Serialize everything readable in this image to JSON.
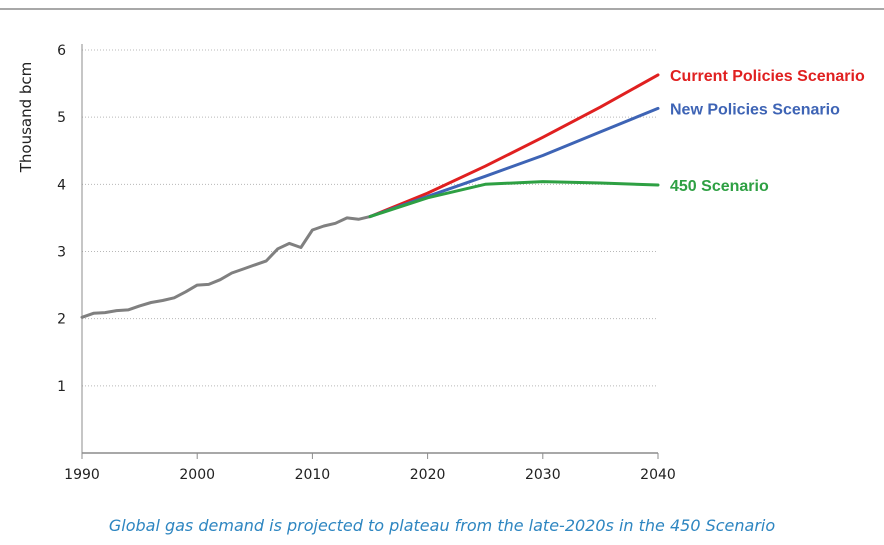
{
  "caption": "Global gas demand is projected to plateau from the late-2020s in the 450 Scenario",
  "chart_data": {
    "type": "line",
    "title": "",
    "xlabel": "",
    "ylabel": "Thousand bcm",
    "xlim": [
      1990,
      2040
    ],
    "ylim": [
      0,
      6
    ],
    "xticks": [
      1990,
      2000,
      2010,
      2020,
      2030,
      2040
    ],
    "yticks": [
      1,
      2,
      3,
      4,
      5,
      6
    ],
    "grid": "horizontal dotted",
    "series": [
      {
        "name": "",
        "color": "#808080",
        "x": [
          1990,
          1991,
          1992,
          1993,
          1994,
          1995,
          1996,
          1997,
          1998,
          1999,
          2000,
          2001,
          2002,
          2003,
          2004,
          2005,
          2006,
          2007,
          2008,
          2009,
          2010,
          2011,
          2012,
          2013,
          2014,
          2015
        ],
        "y": [
          2.02,
          2.08,
          2.09,
          2.12,
          2.13,
          2.19,
          2.24,
          2.27,
          2.31,
          2.4,
          2.5,
          2.51,
          2.58,
          2.68,
          2.74,
          2.8,
          2.86,
          3.04,
          3.12,
          3.06,
          3.32,
          3.38,
          3.42,
          3.5,
          3.48,
          3.52
        ]
      },
      {
        "name": "Current Policies Scenario",
        "color": "#e02020",
        "x": [
          2015,
          2020,
          2025,
          2030,
          2035,
          2040
        ],
        "y": [
          3.52,
          3.87,
          4.27,
          4.7,
          5.15,
          5.63
        ]
      },
      {
        "name": "New Policies Scenario",
        "color": "#3e64b5",
        "x": [
          2015,
          2020,
          2025,
          2030,
          2035,
          2040
        ],
        "y": [
          3.52,
          3.82,
          4.12,
          4.43,
          4.78,
          5.13
        ]
      },
      {
        "name": "450 Scenario",
        "color": "#2ea043",
        "x": [
          2015,
          2020,
          2025,
          2030,
          2035,
          2040
        ],
        "y": [
          3.52,
          3.8,
          4.0,
          4.04,
          4.02,
          3.99
        ]
      }
    ]
  }
}
